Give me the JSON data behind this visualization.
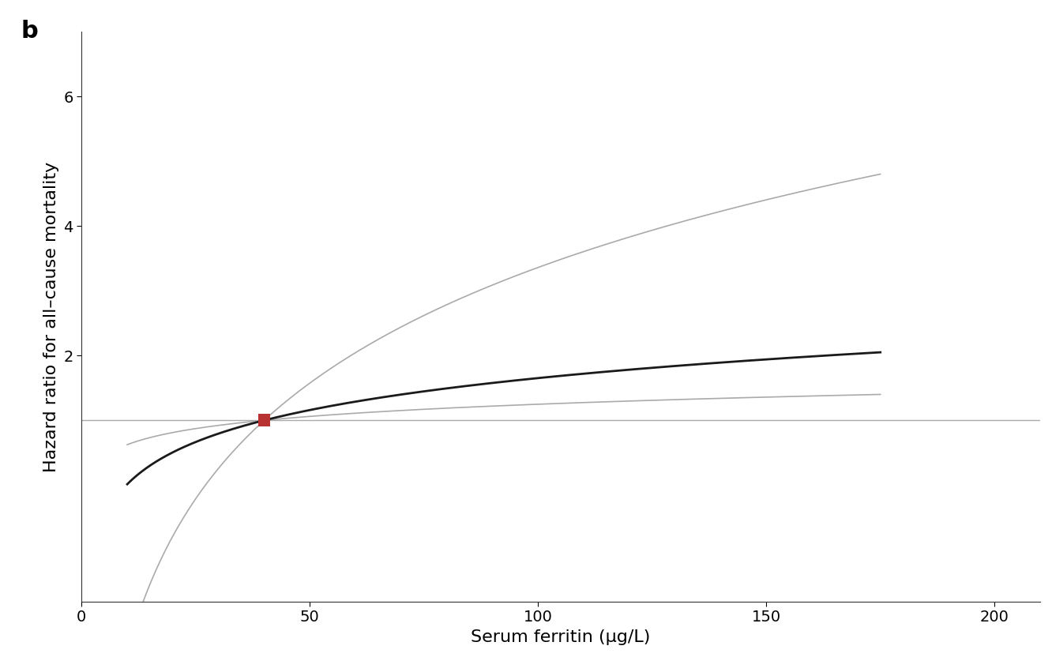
{
  "panel_label": "b",
  "xlabel": "Serum ferritin (μg/L)",
  "ylabel": "Hazard ratio for all–cause mortality",
  "xlim": [
    0,
    210
  ],
  "ylim": [
    -1.8,
    7.0
  ],
  "xticks": [
    0,
    50,
    100,
    150,
    200
  ],
  "yticks": [
    2,
    4,
    6
  ],
  "reference_x": 40,
  "reference_y": 1.0,
  "ref_line_color": "#aaaaaa",
  "ci_color": "#aaaaaa",
  "main_color": "#1a1a1a",
  "marker_color": "#b83232",
  "marker_size": 130,
  "x_start": 10,
  "x_end": 175,
  "background_color": "#ffffff",
  "title_fontsize": 22,
  "label_fontsize": 16,
  "tick_fontsize": 14
}
